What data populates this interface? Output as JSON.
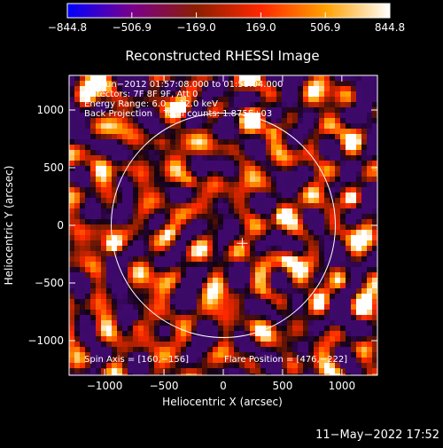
{
  "chart_data": {
    "type": "heatmap",
    "title": "Reconstructed RHESSI Image",
    "xlabel": "Heliocentric X (arcsec)",
    "ylabel": "Heliocentric Y (arcsec)",
    "xlim": [
      -1300,
      1300
    ],
    "ylim": [
      -1300,
      1300
    ],
    "x_ticks": [
      -1000,
      -500,
      0,
      500,
      1000
    ],
    "y_ticks": [
      -1000,
      -500,
      0,
      500,
      1000
    ],
    "x_tick_labels": [
      "−1000",
      "−500",
      "0",
      "500",
      "1000"
    ],
    "y_tick_labels": [
      "−1000",
      "−500",
      "0",
      "500",
      "1000"
    ],
    "colorbar": {
      "range": [
        -844.8,
        844.8
      ],
      "ticks": [
        -844.8,
        -506.9,
        -169.0,
        169.0,
        506.9,
        844.8
      ],
      "tick_labels": [
        "−844.8",
        "−506.9",
        "−169.0",
        "169.0",
        "506.9",
        "844.8"
      ],
      "colors": [
        "#0000ff",
        "#7a008c",
        "#8c1e00",
        "#ff2800",
        "#ffa000",
        "#ffffff"
      ]
    },
    "info_lines": [
      "18−Jun−2012 01:57:08.000 to 01:58:04.000",
      "Detectors: 7F 8F 9F, Att 0",
      "Energy Range: 6.0 − 12.0 keV",
      "Back Projection    Total counts: 1.875E+03"
    ],
    "spin_axis_text": "Spin Axis = [160,−156]",
    "flare_position_text": "Flare Position = [476,−222]",
    "solar_disk": {
      "center": [
        0,
        0
      ],
      "radius": 945
    },
    "cross_marker": {
      "x": 160,
      "y": -156
    },
    "bright_sources": [
      {
        "x": 560,
        "y": -300,
        "amp": 1.0
      },
      {
        "x": -280,
        "y": 380,
        "amp": 0.9
      },
      {
        "x": -930,
        "y": -180,
        "amp": 0.85
      },
      {
        "x": -740,
        "y": -880,
        "amp": 0.85
      },
      {
        "x": 420,
        "y": 820,
        "amp": 0.7
      },
      {
        "x": -830,
        "y": 500,
        "amp": 0.7
      },
      {
        "x": 500,
        "y": 80,
        "amp": 0.75
      },
      {
        "x": -1150,
        "y": 1120,
        "amp": 0.7
      },
      {
        "x": 340,
        "y": -600,
        "amp": 0.6
      },
      {
        "x": 1000,
        "y": -500,
        "amp": 0.6
      },
      {
        "x": -520,
        "y": 720,
        "amp": 0.6
      },
      {
        "x": -350,
        "y": 1020,
        "amp": 0.6
      },
      {
        "x": 1090,
        "y": 230,
        "amp": 0.55
      },
      {
        "x": -450,
        "y": -60,
        "amp": 0.55
      }
    ]
  },
  "footer": {
    "timestamp": "11−May−2022 17:52"
  }
}
